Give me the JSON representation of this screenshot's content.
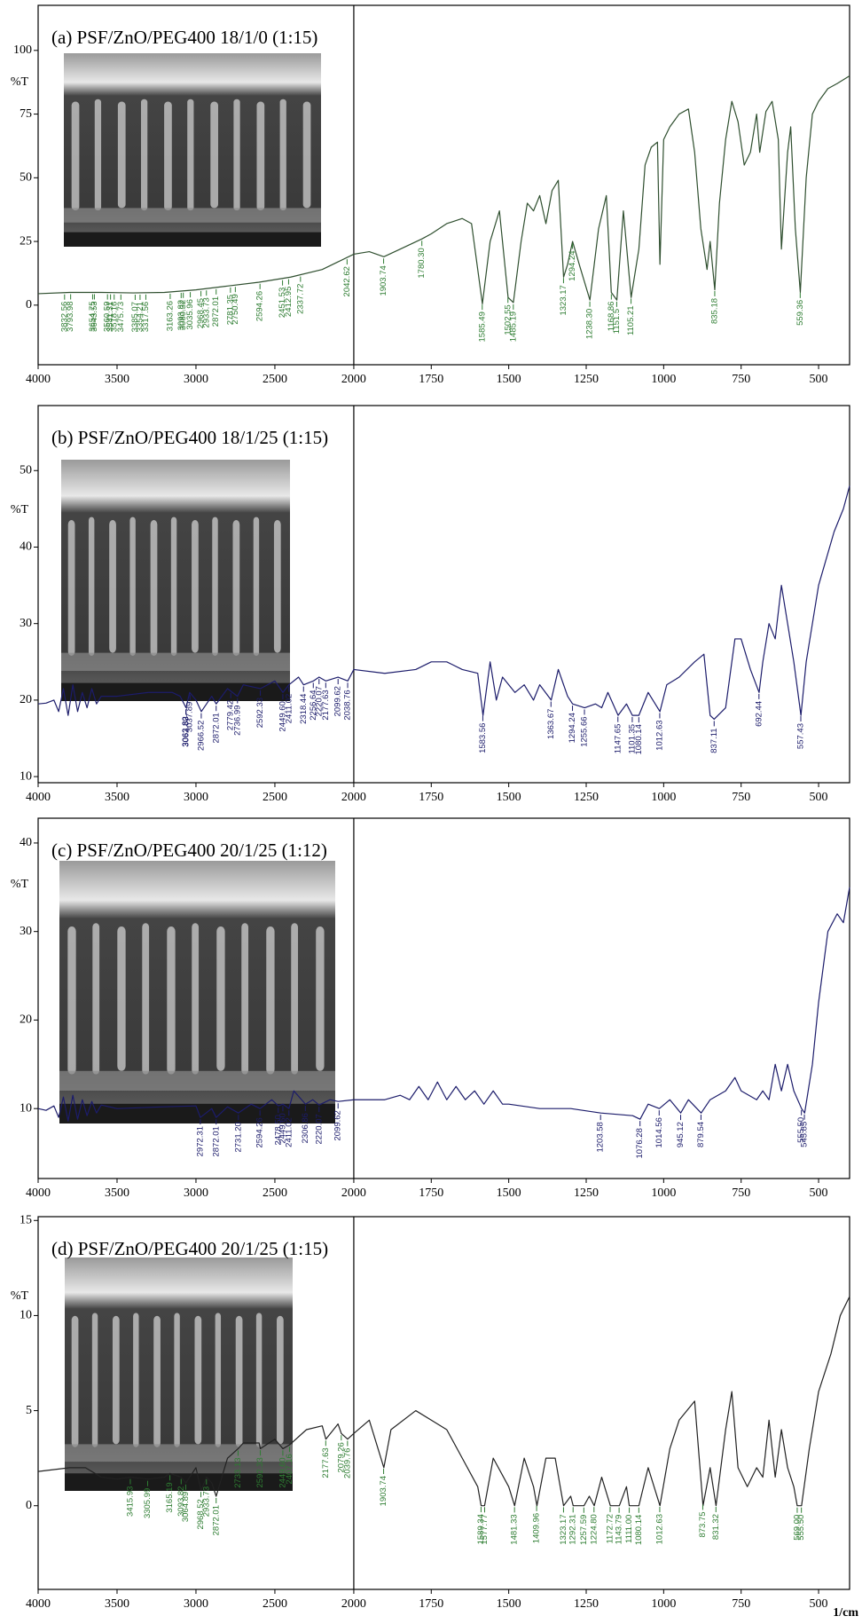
{
  "chart_data": [
    {
      "type": "line",
      "title": "(a) PSF/ZnO/PEG400 18/1/0 (1:15)",
      "y_label": "%T",
      "xlim": [
        4000,
        400
      ],
      "x_break": 2000,
      "xticks": [
        4000,
        3500,
        3000,
        2500,
        2000,
        1750,
        1500,
        1250,
        1000,
        750,
        500
      ],
      "ylim": [
        -23.4,
        117.7
      ],
      "yticks": [
        0,
        25,
        50,
        75,
        100
      ],
      "x": [
        4000,
        3800,
        3600,
        3400,
        3200,
        3000,
        2800,
        2600,
        2400,
        2200,
        2100,
        2000,
        1950,
        1903,
        1850,
        1780,
        1750,
        1700,
        1650,
        1620,
        1585,
        1560,
        1530,
        1502,
        1485,
        1460,
        1440,
        1420,
        1400,
        1380,
        1360,
        1340,
        1323,
        1310,
        1294,
        1270,
        1238,
        1210,
        1185,
        1169,
        1151,
        1130,
        1105,
        1080,
        1060,
        1040,
        1020,
        1012,
        1000,
        980,
        950,
        920,
        900,
        880,
        860,
        850,
        835,
        820,
        800,
        780,
        760,
        740,
        720,
        700,
        690,
        670,
        650,
        630,
        620,
        600,
        590,
        575,
        559,
        540,
        520,
        500,
        470,
        440,
        400
      ],
      "series": [
        {
          "color": "#2f4f2f",
          "values": [
            4.5,
            5,
            5,
            4.8,
            5,
            6,
            7.5,
            9,
            11,
            14,
            17,
            20,
            21,
            19,
            22,
            26,
            28,
            32,
            34,
            32,
            0.5,
            25,
            37,
            3,
            1,
            25,
            40,
            37,
            43,
            32,
            45,
            49,
            11,
            16,
            25,
            15,
            2,
            30,
            43,
            5,
            2,
            37,
            3,
            22,
            55,
            62,
            64,
            16,
            65,
            70,
            75,
            77,
            60,
            30,
            14,
            25,
            6,
            40,
            65,
            80,
            72,
            55,
            60,
            75,
            60,
            76,
            80,
            65,
            22,
            60,
            70,
            30,
            5,
            50,
            75,
            80,
            85,
            87,
            90
          ]
        }
      ],
      "peak_color": "#2e7d32",
      "peaks": [
        3832.56,
        3793.98,
        3654.75,
        3643.53,
        3560.59,
        3541.31,
        3518.16,
        3475.73,
        3385.07,
        3354.21,
        3317.56,
        3163.26,
        3093.82,
        3080.32,
        3035.96,
        2968.45,
        2933.73,
        2872.01,
        2781.35,
        2750.49,
        2594.26,
        2451.53,
        2412.95,
        2337.72,
        2042.62,
        1903.74,
        {
          "value": 1780.3,
          "label": "1780.30"
        },
        1585.49,
        1502.55,
        1485.19,
        1323.17,
        1294.24,
        {
          "value": 1238.3,
          "label": "1238.30"
        },
        1168.86,
        1151.5,
        1105.21,
        835.18,
        559.36
      ]
    },
    {
      "type": "line",
      "title": "(b) PSF/ZnO/PEG400 18/1/25 (1:15)",
      "y_label": "%T",
      "xlim": [
        4000,
        400
      ],
      "x_break": 2000,
      "xticks": [
        4000,
        3500,
        3000,
        2500,
        2000,
        1750,
        1500,
        1250,
        1000,
        750,
        500
      ],
      "ylim": [
        9.2,
        58.5
      ],
      "yticks": [
        10,
        20,
        30,
        40,
        50
      ],
      "x": [
        4000,
        3950,
        3900,
        3870,
        3840,
        3810,
        3780,
        3750,
        3720,
        3690,
        3660,
        3630,
        3600,
        3500,
        3300,
        3150,
        3100,
        3063,
        3040,
        3000,
        2966,
        2900,
        2872,
        2800,
        2737,
        2700,
        2592,
        2500,
        2449,
        2411,
        2350,
        2318,
        2256,
        2220,
        2177,
        2100,
        2038,
        2000,
        1900,
        1800,
        1750,
        1700,
        1650,
        1600,
        1583,
        1560,
        1540,
        1520,
        1480,
        1450,
        1420,
        1400,
        1363,
        1340,
        1310,
        1294,
        1255,
        1220,
        1200,
        1180,
        1147,
        1120,
        1101,
        1080,
        1050,
        1012,
        990,
        950,
        900,
        870,
        850,
        837,
        800,
        770,
        750,
        720,
        692,
        680,
        660,
        640,
        620,
        600,
        580,
        557,
        540,
        500,
        450,
        420,
        400
      ],
      "series": [
        {
          "color": "#1c1c6b",
          "values": [
            19.5,
            19.6,
            20,
            18.5,
            21.5,
            18,
            22,
            18.5,
            21,
            19,
            21.5,
            19.5,
            20.5,
            20.5,
            21,
            21,
            20.5,
            19,
            21,
            20,
            18.5,
            20.5,
            19.5,
            21.5,
            20.5,
            22,
            21.5,
            22.5,
            21,
            22,
            23,
            22,
            22.5,
            23,
            22.5,
            23,
            22.5,
            24,
            23.5,
            24,
            25,
            25,
            24,
            23.5,
            18,
            25,
            20,
            23,
            21,
            22,
            20,
            22,
            20,
            24,
            20.5,
            19.5,
            19,
            19.5,
            19,
            21,
            18,
            19.5,
            18,
            18,
            21,
            18.5,
            22,
            23,
            25,
            26,
            18,
            17.5,
            19,
            28,
            28,
            24,
            21,
            25,
            30,
            28,
            35,
            30,
            25,
            18,
            25,
            35,
            42,
            45,
            48
          ]
        }
      ],
      "peak_color": "#1c1c6b",
      "peaks": [
        3063.82,
        3062.89,
        3037.89,
        2966.52,
        2872.01,
        2779.42,
        2736.99,
        2592.33,
        {
          "value": 2449.6,
          "label": "2449.60"
        },
        2411.02,
        2318.44,
        2256.64,
        2220.07,
        2177.63,
        2099.62,
        2038.76,
        1583.56,
        1363.67,
        1294.24,
        1255.66,
        1147.65,
        1101.35,
        1080.14,
        1012.63,
        837.11,
        692.44,
        557.43
      ]
    },
    {
      "type": "line",
      "title": "(c) PSF/ZnO/PEG400 20/1/25 (1:12)",
      "y_label": "%T",
      "xlim": [
        4000,
        400
      ],
      "x_break": 2000,
      "xticks": [
        4000,
        3500,
        3000,
        2500,
        2000,
        1750,
        1500,
        1250,
        1000,
        750,
        500
      ],
      "ylim": [
        2.1,
        42.8
      ],
      "yticks": [
        10,
        20,
        30,
        40
      ],
      "x": [
        4000,
        3950,
        3900,
        3870,
        3840,
        3810,
        3780,
        3750,
        3720,
        3690,
        3660,
        3630,
        3600,
        3500,
        3200,
        3000,
        2972,
        2900,
        2872,
        2800,
        2731,
        2650,
        2594,
        2520,
        2478,
        2449,
        2411,
        2380,
        2306,
        2260,
        2220,
        2150,
        2099,
        2000,
        1900,
        1850,
        1820,
        1790,
        1760,
        1730,
        1700,
        1670,
        1640,
        1610,
        1580,
        1550,
        1520,
        1500,
        1400,
        1300,
        1203,
        1100,
        1076,
        1050,
        1014,
        980,
        945,
        920,
        879,
        850,
        800,
        770,
        750,
        700,
        680,
        660,
        640,
        620,
        600,
        580,
        555,
        545,
        520,
        500,
        470,
        440,
        420,
        400
      ],
      "series": [
        {
          "color": "#1c1c6b",
          "values": [
            10,
            9.8,
            10.3,
            9,
            11.3,
            8.6,
            11.5,
            8.8,
            11,
            9.2,
            10.8,
            9.5,
            10.4,
            10,
            10.2,
            10.3,
            9,
            10,
            9,
            10.2,
            9.5,
            10.5,
            10,
            11,
            10.3,
            10.5,
            10,
            12,
            10.5,
            11,
            10.4,
            11,
            10.8,
            11,
            11,
            11.5,
            11,
            12.5,
            11,
            13,
            11,
            12.5,
            11,
            12,
            10.5,
            12,
            10.5,
            10.5,
            10,
            10,
            9.5,
            9.2,
            8.8,
            10.5,
            10,
            11,
            9.5,
            11,
            9.5,
            11,
            12,
            13.5,
            12,
            11,
            12,
            11,
            15,
            12,
            15,
            12,
            10,
            9.5,
            15,
            22,
            30,
            32,
            31,
            35
          ]
        }
      ],
      "peak_color": "#1c1c6b",
      "peaks": [
        2972.31,
        2872.01,
        {
          "value": 2731.2,
          "label": "2731.20"
        },
        2594.26,
        {
          "value": 2478.5,
          "label": "2478.50"
        },
        {
          "value": 2449.6,
          "label": "2449.60"
        },
        2411.02,
        2306.86,
        2220.07,
        2099.62,
        1203.58,
        1076.28,
        1014.56,
        945.12,
        879.54,
        {
          "value": 555.5,
          "label": "555.50"
        },
        545.85
      ]
    },
    {
      "type": "line",
      "title": "(d) PSF/ZnO/PEG400 20/1/25 (1:15)",
      "y_label": "%T",
      "x_label": "1/cm",
      "xlim": [
        4000,
        400
      ],
      "x_break": 2000,
      "xticks": [
        4000,
        3500,
        3000,
        2500,
        2000,
        1750,
        1500,
        1250,
        1000,
        750,
        500
      ],
      "ylim": [
        -4.4,
        15.2
      ],
      "yticks": [
        0,
        5,
        10,
        15
      ],
      "x": [
        4000,
        3900,
        3800,
        3700,
        3600,
        3500,
        3415,
        3305,
        3200,
        3165,
        3093,
        3064,
        3000,
        2968,
        2933,
        2900,
        2872,
        2800,
        2733,
        2700,
        2600,
        2592,
        2500,
        2449,
        2407,
        2300,
        2200,
        2177,
        2100,
        2079,
        2039,
        2000,
        1950,
        1903,
        1880,
        1800,
        1750,
        1700,
        1650,
        1600,
        1589,
        1578,
        1550,
        1500,
        1481,
        1450,
        1420,
        1409,
        1380,
        1350,
        1323,
        1300,
        1292,
        1257,
        1240,
        1224,
        1200,
        1172,
        1143,
        1120,
        1111,
        1080,
        1050,
        1012,
        980,
        950,
        900,
        873,
        850,
        831,
        800,
        780,
        760,
        730,
        700,
        680,
        660,
        640,
        620,
        600,
        580,
        569,
        555,
        530,
        500,
        460,
        430,
        400
      ],
      "series": [
        {
          "color": "#222222",
          "values": [
            1.8,
            1.9,
            2,
            2,
            1.5,
            1.4,
            1.5,
            1.4,
            1.5,
            1.7,
            1.5,
            1.2,
            2,
            0.8,
            1.5,
            1.2,
            0.5,
            2.5,
            3,
            3.3,
            3.3,
            3,
            3.5,
            3,
            3.2,
            4,
            4.2,
            3.5,
            4.3,
            3.8,
            3.5,
            3.8,
            4.5,
            2,
            4,
            5,
            4.5,
            4,
            2.5,
            1,
            0,
            0,
            2.5,
            1,
            0,
            2.5,
            1,
            0,
            2.5,
            2.5,
            0,
            0.5,
            0,
            0,
            0.5,
            0,
            1.5,
            0,
            0,
            1,
            0,
            0,
            2,
            0,
            3,
            4.5,
            5.5,
            0,
            2,
            0,
            4,
            6,
            2,
            1,
            2,
            1.5,
            4.5,
            1.5,
            4,
            2,
            1,
            0,
            0,
            3,
            6,
            8,
            10,
            11
          ]
        }
      ],
      "peak_color": "#2e7d32",
      "peaks": [
        3415.93,
        3305.99,
        3165.19,
        3093.82,
        3064.89,
        2968.52,
        2933.73,
        2872.01,
        2733.13,
        2592.33,
        {
          "value": 2449.6,
          "label": "2449.60"
        },
        2407.16,
        2177.63,
        2079.26,
        2039.76,
        1903.74,
        1589.34,
        1577.77,
        1481.33,
        1409.96,
        1323.17,
        1292.31,
        1257.59,
        {
          "value": 1224.8,
          "label": "1224.80"
        },
        1172.72,
        1143.79,
        {
          "value": 1111,
          "label": "1111.00"
        },
        1080.14,
        1012.63,
        873.75,
        831.32,
        {
          "value": 569,
          "label": "569.00"
        },
        {
          "value": 555.5,
          "label": "555.50"
        }
      ]
    }
  ]
}
